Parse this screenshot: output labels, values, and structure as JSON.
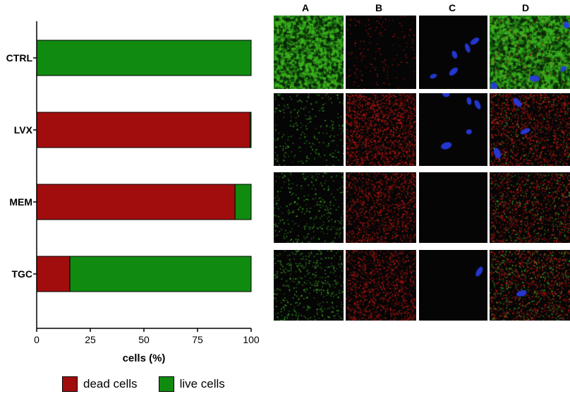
{
  "chart_data": {
    "type": "bar",
    "orientation": "horizontal",
    "stacked": true,
    "categories": [
      "CTRL",
      "LVX",
      "MEM",
      "TGC"
    ],
    "series": [
      {
        "name": "dead cells",
        "color": "#a10d0d",
        "values": [
          0,
          99.5,
          92.5,
          15.5
        ]
      },
      {
        "name": "live cells",
        "color": "#108b10",
        "values": [
          100,
          0.5,
          7.5,
          84.5
        ]
      }
    ],
    "xlabel": "cells (%)",
    "ylabel": "",
    "xlim": [
      0,
      100
    ],
    "xticks": [
      "0",
      "25",
      "50",
      "75",
      "100"
    ],
    "legend": {
      "placement": "bottom",
      "entries": [
        "dead cells",
        "live cells"
      ]
    },
    "grid": false
  },
  "panels": {
    "column_labels": [
      "A",
      "B",
      "C",
      "D"
    ]
  }
}
